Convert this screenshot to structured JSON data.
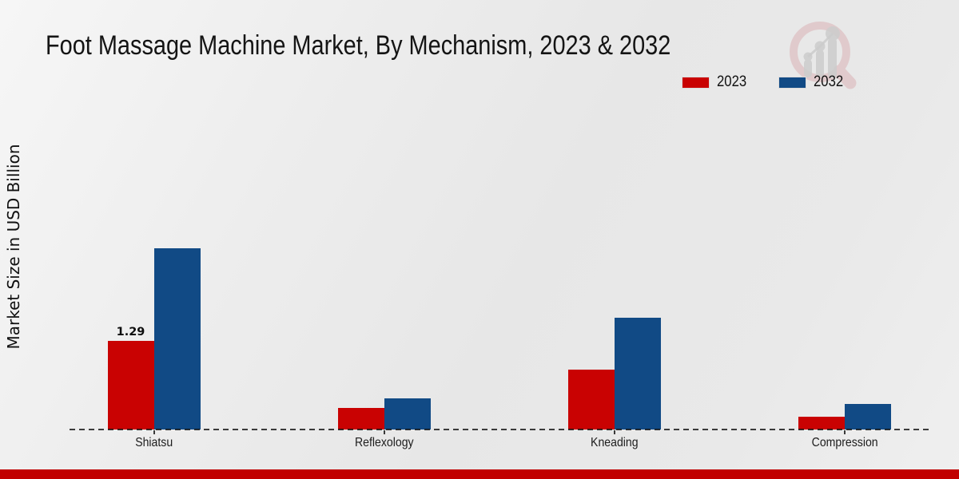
{
  "colors": {
    "series_2023": "#c90202",
    "series_2032": "#114a85",
    "bottom_accent": "#c10101",
    "baseline": "#1a1a1a",
    "watermark_pink": "#c56269",
    "watermark_gray": "#c9c9c9"
  },
  "chart_data": {
    "type": "bar",
    "title": "Foot Massage Machine Market, By Mechanism, 2023 & 2032",
    "xlabel": "",
    "ylabel": "Market Size in USD Billion",
    "categories": [
      "Shiatsu",
      "Reflexology",
      "Kneading",
      "Compression"
    ],
    "series": [
      {
        "name": "2023",
        "color": "#c90202",
        "values": [
          1.29,
          0.31,
          0.87,
          0.19
        ]
      },
      {
        "name": "2032",
        "color": "#114a85",
        "values": [
          2.65,
          0.46,
          1.63,
          0.37
        ]
      }
    ],
    "annotations": [
      {
        "series": "2023",
        "category": "Shiatsu",
        "text": "1.29"
      }
    ],
    "units": "USD Billion",
    "ylim": [
      0,
      3.1
    ],
    "grid": false,
    "y_axis_ticks_visible": false,
    "baseline_style": "dashed",
    "legend_position": "top-right"
  }
}
